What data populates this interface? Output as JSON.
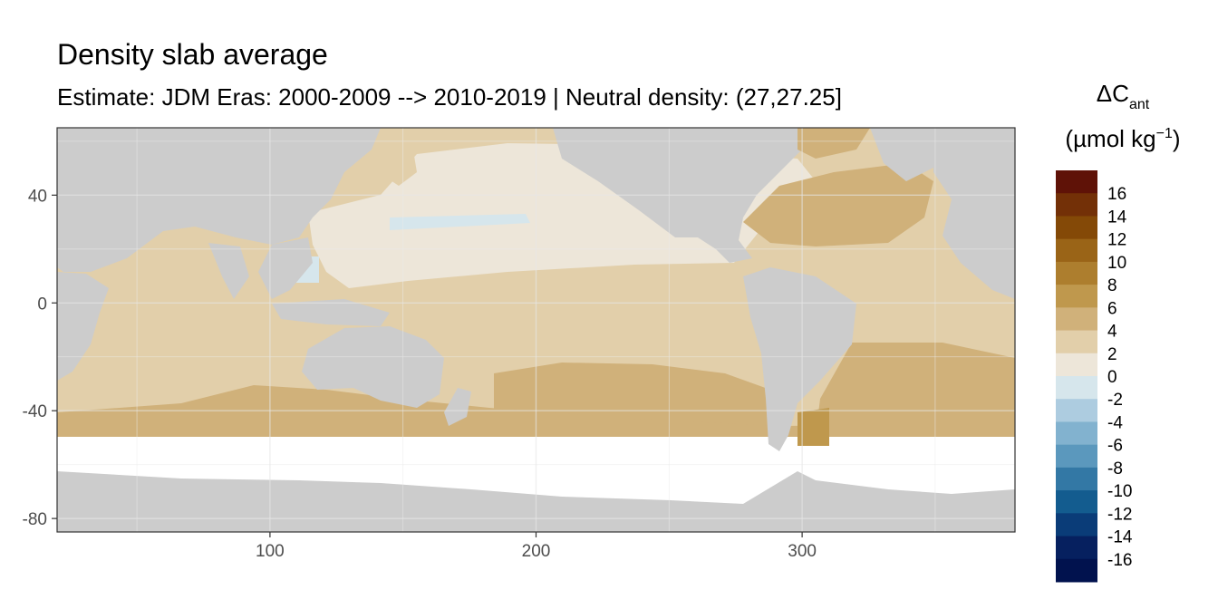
{
  "title": "Density slab average",
  "subtitle": "Estimate: JDM Eras: 2000-2009 --> 2010-2019 | Neutral density: (27,27.25]",
  "chart_data": {
    "type": "heatmap",
    "x_ticks": [
      100,
      200,
      300
    ],
    "y_ticks": [
      40,
      0,
      -40,
      -80
    ],
    "xlim": [
      20,
      380
    ],
    "ylim": [
      -85,
      65
    ],
    "grid": true,
    "legend": {
      "title_main": "ΔC",
      "title_sub": "ant",
      "unit_main": "(µmol kg",
      "unit_sup": "−1",
      "unit_close": ")",
      "placement": "right",
      "labels": [
        "16",
        "14",
        "12",
        "10",
        "8",
        "6",
        "4",
        "2",
        "0",
        "-2",
        "-4",
        "-6",
        "-8",
        "-10",
        "-12",
        "-14",
        "-16"
      ],
      "colors": [
        "#5f1207",
        "#733007",
        "#844907",
        "#9a6417",
        "#ad7e2e",
        "#bf984d",
        "#d0b17a",
        "#e2cfaa",
        "#ede6d9",
        "#d6e6ec",
        "#adcce0",
        "#82b2cf",
        "#5b98bd",
        "#3378a5",
        "#135c8f",
        "#0a3c78",
        "#06205f",
        "#01124e"
      ]
    },
    "region_bins": {
      "north_pacific": "0 to 2",
      "tropical_pacific": "2 to 4",
      "south_pacific": "4 to 6",
      "north_atlantic": "4 to 6",
      "tropical_atlantic": "2 to 4",
      "south_atlantic": "4 to 6",
      "indian_ocean": "2 to 4",
      "southern_ocean_band": "4 to 6",
      "western_pacific_warm_pool": "0 to -2"
    }
  }
}
